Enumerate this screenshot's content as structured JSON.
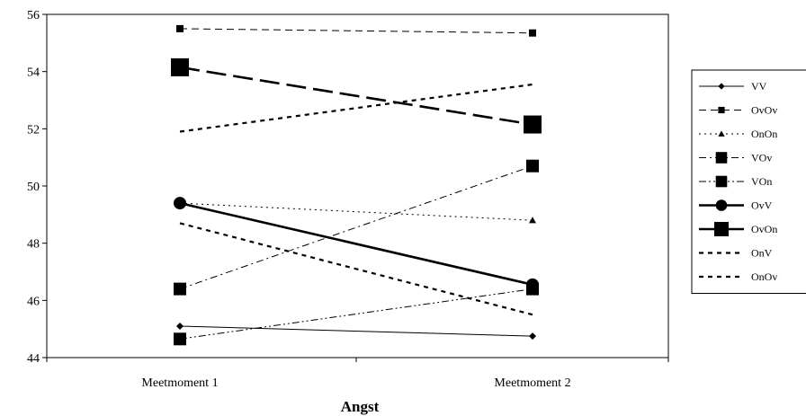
{
  "chart_data": {
    "type": "line",
    "title": "",
    "xlabel": "Angst",
    "ylabel": "",
    "categories": [
      "Meetmoment 1",
      "Meetmoment 2"
    ],
    "ylim": [
      44,
      56
    ],
    "yticks": [
      44,
      46,
      48,
      50,
      52,
      54,
      56
    ],
    "grid": false,
    "legend_position": "right",
    "series": [
      {
        "name": "VV",
        "values": [
          45.1,
          44.75
        ],
        "color": "#000000",
        "dash": "solid",
        "marker": "diamond",
        "marker_size": "small",
        "line_width": "thin"
      },
      {
        "name": "OvOv",
        "values": [
          55.5,
          55.35
        ],
        "color": "#000000",
        "dash": "dashed",
        "marker": "square",
        "marker_size": "small",
        "line_width": "thin"
      },
      {
        "name": "OnOn",
        "values": [
          49.4,
          48.8
        ],
        "color": "#000000",
        "dash": "dotted",
        "marker": "triangle",
        "marker_size": "small",
        "line_width": "thin"
      },
      {
        "name": "VOv",
        "values": [
          46.4,
          50.7
        ],
        "color": "#000000",
        "dash": "dashdot",
        "marker": "square",
        "marker_size": "medium",
        "line_width": "thin"
      },
      {
        "name": "VOn",
        "values": [
          44.65,
          46.4
        ],
        "color": "#000000",
        "dash": "dashdotdot",
        "marker": "square",
        "marker_size": "medium",
        "line_width": "thin"
      },
      {
        "name": "OvV",
        "values": [
          49.4,
          46.55
        ],
        "color": "#000000",
        "dash": "solid",
        "marker": "circle",
        "marker_size": "medium",
        "line_width": "thick"
      },
      {
        "name": "OvOn",
        "values": [
          54.15,
          52.15
        ],
        "color": "#000000",
        "dash": "longdash",
        "marker": "square",
        "marker_size": "large",
        "line_width": "thick"
      },
      {
        "name": "OnV",
        "values": [
          48.7,
          45.5
        ],
        "color": "#000000",
        "dash": "shortdash",
        "marker": "none",
        "marker_size": "none",
        "line_width": "medium"
      },
      {
        "name": "OnOv",
        "values": [
          51.9,
          53.55
        ],
        "color": "#000000",
        "dash": "shortdash",
        "marker": "none",
        "marker_size": "none",
        "line_width": "medium"
      }
    ]
  }
}
